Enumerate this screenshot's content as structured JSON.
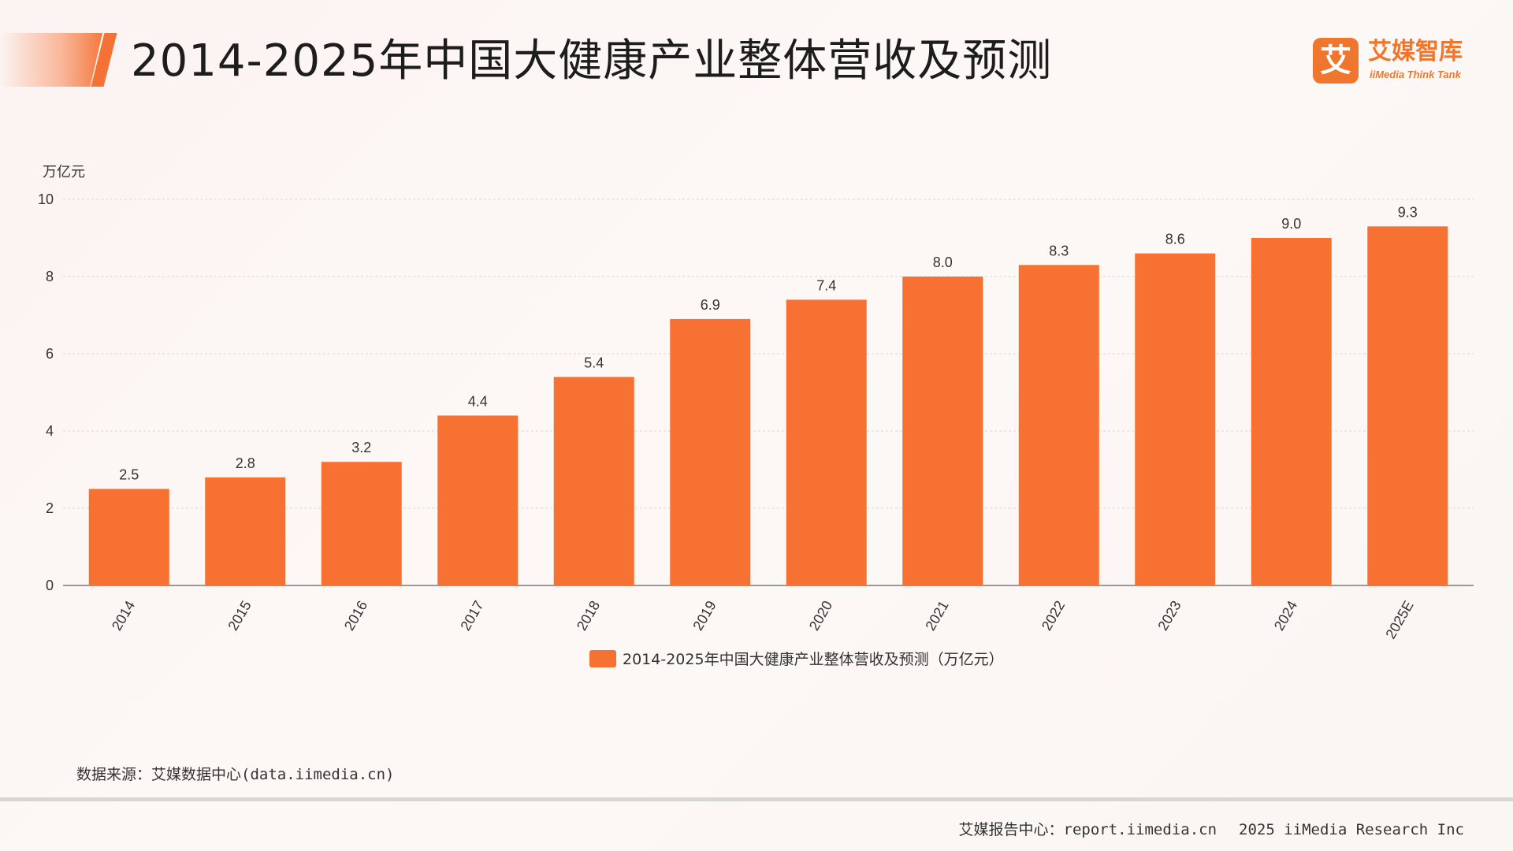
{
  "header": {
    "title": "2014-2025年中国大健康产业整体营收及预测",
    "logo_mark": "艾",
    "logo_name": "艾媒智库",
    "logo_sub": "iiMedia Think Tank"
  },
  "chart_data": {
    "type": "bar",
    "unit_label": "万亿元",
    "categories": [
      "2014",
      "2015",
      "2016",
      "2017",
      "2018",
      "2019",
      "2020",
      "2021",
      "2022",
      "2023",
      "2024",
      "2025E"
    ],
    "series": [
      {
        "name": "2014-2025年中国大健康产业整体营收及预测（万亿元）",
        "values": [
          2.5,
          2.8,
          3.2,
          4.4,
          5.4,
          6.9,
          7.4,
          8.0,
          8.3,
          8.6,
          9.0,
          9.3
        ],
        "labels": [
          "2.5",
          "2.8",
          "3.2",
          "4.4",
          "5.4",
          "6.9",
          "7.4",
          "8.0",
          "8.3",
          "8.6",
          "9.0",
          "9.3"
        ]
      }
    ],
    "ylim": [
      0,
      10
    ],
    "yticks": [
      0,
      2,
      4,
      6,
      8,
      10
    ],
    "grid": true,
    "legend_position": "bottom",
    "bar_color": "#f77232"
  },
  "footer": {
    "source": "数据来源：艾媒数据中心(data.iimedia.cn)",
    "report": "艾媒报告中心：report.iimedia.cn",
    "copyright": "2025 iiMedia Research Inc"
  }
}
